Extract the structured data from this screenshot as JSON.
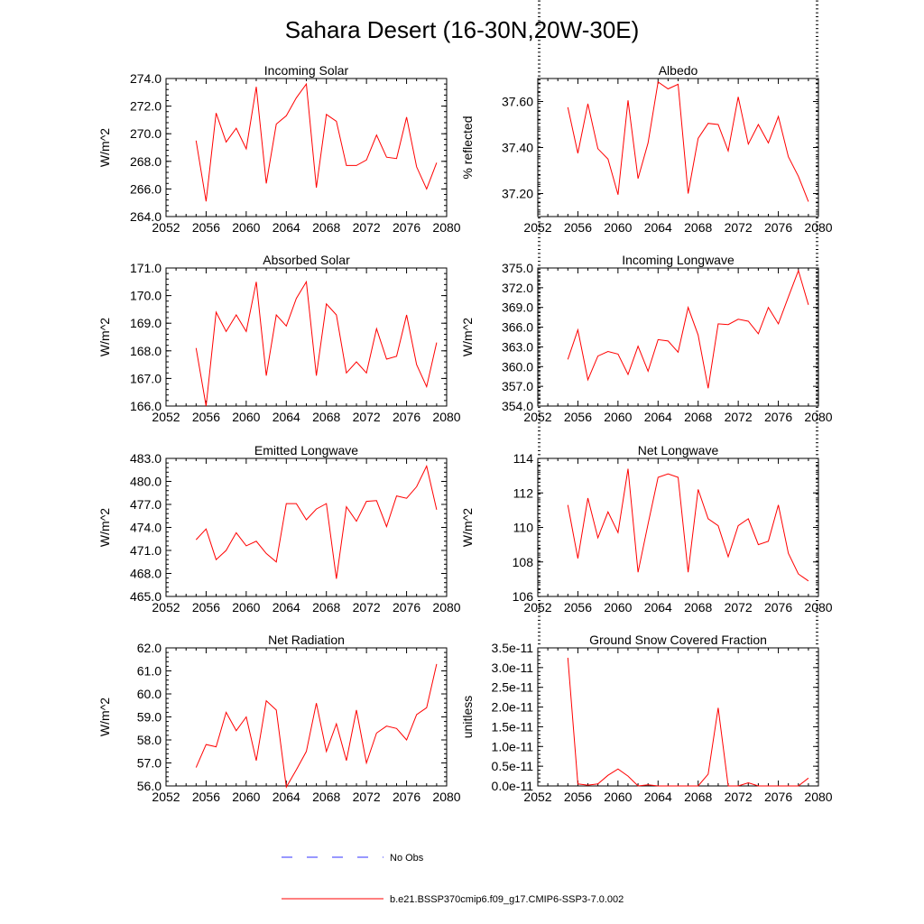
{
  "title": "Sahara Desert (16-30N,20W-30E)",
  "colors": {
    "series": "#ff0000",
    "obs": "#3030ff",
    "axis": "#000000"
  },
  "legend": [
    {
      "label": "No Obs",
      "style": "dashed",
      "color": "#3030ff"
    },
    {
      "label": "b.e21.BSSP370cmip6.f09_g17.CMIP6-SSP3-7.0.002",
      "style": "solid",
      "color": "#ff0000"
    }
  ],
  "chart_data": [
    {
      "type": "line",
      "title": "Incoming Solar",
      "ylabel": "W/m^2",
      "xlim": [
        2052,
        2080
      ],
      "ylim": [
        264.0,
        274.0
      ],
      "xticks": [
        "2052",
        "2056",
        "2060",
        "2064",
        "2068",
        "2072",
        "2076",
        "2080"
      ],
      "yticks": [
        "264.0",
        "266.0",
        "268.0",
        "270.0",
        "272.0",
        "274.0"
      ],
      "series": [
        {
          "x": [
            2055,
            2056,
            2057,
            2058,
            2059,
            2060,
            2061,
            2062,
            2063,
            2064,
            2065,
            2066,
            2067,
            2068,
            2069,
            2070,
            2071,
            2072,
            2073,
            2074,
            2075,
            2076,
            2077,
            2078,
            2079
          ],
          "values": [
            269.5,
            265.1,
            271.5,
            269.4,
            270.4,
            268.9,
            273.4,
            266.4,
            270.7,
            271.3,
            272.6,
            273.6,
            266.1,
            271.4,
            270.9,
            267.7,
            267.7,
            268.1,
            269.9,
            268.3,
            268.2,
            271.2,
            267.6,
            266.0,
            267.9
          ]
        }
      ]
    },
    {
      "type": "line",
      "title": "Albedo",
      "ylabel": "% reflected",
      "xlim": [
        2052,
        2080
      ],
      "ylim": [
        37.1,
        37.7
      ],
      "xticks": [
        "2052",
        "2056",
        "2060",
        "2064",
        "2068",
        "2072",
        "2076",
        "2080"
      ],
      "yticks": [
        "37.20",
        "37.40",
        "37.60"
      ],
      "series": [
        {
          "x": [
            2055,
            2056,
            2057,
            2058,
            2059,
            2060,
            2061,
            2062,
            2063,
            2064,
            2065,
            2066,
            2067,
            2068,
            2069,
            2070,
            2071,
            2072,
            2073,
            2074,
            2075,
            2076,
            2077,
            2078,
            2079
          ],
          "values": [
            37.575,
            37.375,
            37.59,
            37.395,
            37.35,
            37.195,
            37.605,
            37.265,
            37.42,
            37.685,
            37.655,
            37.675,
            37.2,
            37.44,
            37.505,
            37.5,
            37.385,
            37.62,
            37.415,
            37.5,
            37.42,
            37.535,
            37.36,
            37.275,
            37.165
          ]
        }
      ]
    },
    {
      "type": "line",
      "title": "Absorbed Solar",
      "ylabel": "W/m^2",
      "xlim": [
        2052,
        2080
      ],
      "ylim": [
        166.0,
        171.0
      ],
      "xticks": [
        "2052",
        "2056",
        "2060",
        "2064",
        "2068",
        "2072",
        "2076",
        "2080"
      ],
      "yticks": [
        "166.0",
        "167.0",
        "168.0",
        "169.0",
        "170.0",
        "171.0"
      ],
      "series": [
        {
          "x": [
            2055,
            2056,
            2057,
            2058,
            2059,
            2060,
            2061,
            2062,
            2063,
            2064,
            2065,
            2066,
            2067,
            2068,
            2069,
            2070,
            2071,
            2072,
            2073,
            2074,
            2075,
            2076,
            2077,
            2078,
            2079
          ],
          "values": [
            168.1,
            166.0,
            169.4,
            168.7,
            169.3,
            168.7,
            170.5,
            167.1,
            169.3,
            168.9,
            169.9,
            170.5,
            167.1,
            169.7,
            169.3,
            167.2,
            167.6,
            167.2,
            168.8,
            167.7,
            167.8,
            169.3,
            167.5,
            166.7,
            168.3
          ]
        }
      ]
    },
    {
      "type": "line",
      "title": "Incoming Longwave",
      "ylabel": "W/m^2",
      "xlim": [
        2052,
        2080
      ],
      "ylim": [
        354.0,
        375.0
      ],
      "xticks": [
        "2052",
        "2056",
        "2060",
        "2064",
        "2068",
        "2072",
        "2076",
        "2080"
      ],
      "yticks": [
        "354.0",
        "357.0",
        "360.0",
        "363.0",
        "366.0",
        "369.0",
        "372.0",
        "375.0"
      ],
      "series": [
        {
          "x": [
            2055,
            2056,
            2057,
            2058,
            2059,
            2060,
            2061,
            2062,
            2063,
            2064,
            2065,
            2066,
            2067,
            2068,
            2069,
            2070,
            2071,
            2072,
            2073,
            2074,
            2075,
            2076,
            2077,
            2078,
            2079
          ],
          "values": [
            361.1,
            365.6,
            358.0,
            361.6,
            362.3,
            361.9,
            358.8,
            363.1,
            359.3,
            364.1,
            363.9,
            362.2,
            369.0,
            364.8,
            356.7,
            366.5,
            366.4,
            367.2,
            366.9,
            365.0,
            369.0,
            366.5,
            370.6,
            374.6,
            369.4
          ]
        }
      ]
    },
    {
      "type": "line",
      "title": "Emitted Longwave",
      "ylabel": "W/m^2",
      "xlim": [
        2052,
        2080
      ],
      "ylim": [
        465.0,
        483.0
      ],
      "xticks": [
        "2052",
        "2056",
        "2060",
        "2064",
        "2068",
        "2072",
        "2076",
        "2080"
      ],
      "yticks": [
        "465.0",
        "468.0",
        "471.0",
        "474.0",
        "477.0",
        "480.0",
        "483.0"
      ],
      "series": [
        {
          "x": [
            2055,
            2056,
            2057,
            2058,
            2059,
            2060,
            2061,
            2062,
            2063,
            2064,
            2065,
            2066,
            2067,
            2068,
            2069,
            2070,
            2071,
            2072,
            2073,
            2074,
            2075,
            2076,
            2077,
            2078,
            2079
          ],
          "values": [
            472.4,
            473.8,
            469.8,
            471.0,
            473.3,
            471.6,
            472.2,
            470.6,
            469.5,
            477.1,
            477.1,
            475.0,
            476.4,
            477.1,
            467.3,
            476.7,
            474.8,
            477.4,
            477.5,
            474.1,
            478.1,
            477.8,
            479.3,
            482.0,
            476.3
          ]
        }
      ]
    },
    {
      "type": "line",
      "title": "Net Longwave",
      "ylabel": "W/m^2",
      "xlim": [
        2052,
        2080
      ],
      "ylim": [
        106,
        114
      ],
      "xticks": [
        "2052",
        "2056",
        "2060",
        "2064",
        "2068",
        "2072",
        "2076",
        "2080"
      ],
      "yticks": [
        "106",
        "108",
        "110",
        "112",
        "114"
      ],
      "series": [
        {
          "x": [
            2055,
            2056,
            2057,
            2058,
            2059,
            2060,
            2061,
            2062,
            2063,
            2064,
            2065,
            2066,
            2067,
            2068,
            2069,
            2070,
            2071,
            2072,
            2073,
            2074,
            2075,
            2076,
            2077,
            2078,
            2079
          ],
          "values": [
            111.3,
            108.2,
            111.7,
            109.4,
            110.9,
            109.7,
            113.4,
            107.4,
            110.2,
            112.9,
            113.1,
            112.9,
            107.4,
            112.2,
            110.5,
            110.1,
            108.3,
            110.1,
            110.5,
            109.0,
            109.2,
            111.3,
            108.5,
            107.3,
            106.9
          ]
        }
      ]
    },
    {
      "type": "line",
      "title": "Net Radiation",
      "ylabel": "W/m^2",
      "xlim": [
        2052,
        2080
      ],
      "ylim": [
        56.0,
        62.0
      ],
      "xticks": [
        "2052",
        "2056",
        "2060",
        "2064",
        "2068",
        "2072",
        "2076",
        "2080"
      ],
      "yticks": [
        "56.0",
        "57.0",
        "58.0",
        "59.0",
        "60.0",
        "61.0",
        "62.0"
      ],
      "series": [
        {
          "x": [
            2055,
            2056,
            2057,
            2058,
            2059,
            2060,
            2061,
            2062,
            2063,
            2064,
            2065,
            2066,
            2067,
            2068,
            2069,
            2070,
            2071,
            2072,
            2073,
            2074,
            2075,
            2076,
            2077,
            2078,
            2079
          ],
          "values": [
            56.8,
            57.8,
            57.7,
            59.2,
            58.4,
            59.0,
            57.1,
            59.7,
            59.3,
            55.95,
            56.7,
            57.5,
            59.6,
            57.5,
            58.7,
            57.1,
            59.3,
            57.0,
            58.3,
            58.6,
            58.5,
            58.0,
            59.1,
            59.4,
            61.3
          ]
        }
      ]
    },
    {
      "type": "line",
      "title": "Ground Snow Covered Fraction",
      "ylabel": "unitless",
      "xlim": [
        2052,
        2080
      ],
      "ylim": [
        0.0,
        3.5e-11
      ],
      "xticks": [
        "2052",
        "2056",
        "2060",
        "2064",
        "2068",
        "2072",
        "2076",
        "2080"
      ],
      "yticks": [
        "0.0e-11",
        "0.5e-11",
        "1.0e-11",
        "1.5e-11",
        "2.0e-11",
        "2.5e-11",
        "3.0e-11",
        "3.5e-11"
      ],
      "series": [
        {
          "x": [
            2055,
            2056,
            2057,
            2058,
            2059,
            2060,
            2061,
            2062,
            2063,
            2064,
            2065,
            2066,
            2067,
            2068,
            2069,
            2070,
            2071,
            2072,
            2073,
            2074,
            2075,
            2076,
            2077,
            2078,
            2079
          ],
          "values": [
            3.25e-11,
            5e-13,
            2e-13,
            5e-13,
            2.7e-12,
            4.3e-12,
            2.5e-12,
            0.0,
            3e-13,
            0.0,
            0.0,
            0.0,
            0.0,
            0.0,
            3e-12,
            1.98e-11,
            0.0,
            0.0,
            8e-13,
            0.0,
            0.0,
            0.0,
            0.0,
            0.0,
            2e-12
          ]
        }
      ]
    }
  ]
}
